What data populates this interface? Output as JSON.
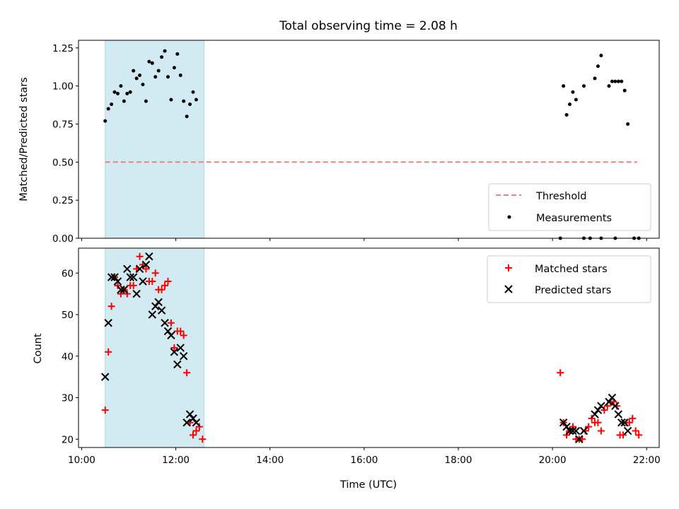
{
  "chart_data": [
    {
      "type": "scatter",
      "title": "Total observing time = 2.08 h",
      "xlabel": "",
      "ylabel": "Matched/Predicted stars",
      "xlim": [
        "09:56",
        "22:16"
      ],
      "ylim": [
        0,
        1.3
      ],
      "ytick_labels": [
        "0.00",
        "0.25",
        "0.50",
        "0.75",
        "1.00",
        "1.25"
      ],
      "shaded_interval": {
        "start": "10:30",
        "end": "12:36",
        "color": "#add8e6"
      },
      "threshold_line": {
        "name": "Threshold",
        "y": 0.5,
        "x_start": "10:30",
        "x_end": "21:48",
        "color": "#f08080",
        "style": "dashed"
      },
      "legend": {
        "position": "lower right",
        "entries": [
          "Threshold",
          "Measurements"
        ]
      },
      "series": [
        {
          "name": "Measurements",
          "marker": "dot",
          "color": "#000000",
          "x": [
            "10:30",
            "10:34",
            "10:38",
            "10:42",
            "10:46",
            "10:50",
            "10:54",
            "10:58",
            "11:02",
            "11:06",
            "11:10",
            "11:14",
            "11:18",
            "11:22",
            "11:26",
            "11:30",
            "11:34",
            "11:38",
            "11:42",
            "11:46",
            "11:50",
            "11:54",
            "11:58",
            "12:02",
            "12:06",
            "12:10",
            "12:14",
            "12:18",
            "12:22",
            "12:26",
            "20:14",
            "20:18",
            "20:22",
            "20:26",
            "20:30",
            "20:40",
            "20:54",
            "20:58",
            "21:02",
            "21:12",
            "21:16",
            "21:20",
            "21:24",
            "21:28",
            "21:32",
            "21:36",
            "21:44"
          ],
          "y": [
            0.77,
            0.85,
            0.88,
            0.96,
            0.95,
            1.0,
            0.9,
            0.95,
            0.96,
            1.1,
            1.05,
            1.07,
            1.01,
            0.9,
            1.16,
            1.15,
            1.06,
            1.1,
            1.19,
            1.23,
            1.06,
            0.91,
            1.12,
            1.21,
            1.07,
            0.9,
            0.8,
            0.88,
            0.96,
            0.91,
            1.0,
            0.81,
            0.88,
            0.96,
            0.91,
            1.0,
            1.05,
            1.13,
            1.2,
            1.0,
            1.03,
            1.03,
            1.03,
            1.03,
            0.97,
            0.75,
            0.0
          ]
        },
        {
          "name": "",
          "marker": "dot",
          "color": "#000000",
          "x": [
            "20:10",
            "20:40",
            "20:48",
            "21:02",
            "21:20",
            "21:50"
          ],
          "y": [
            0,
            0,
            0,
            0,
            0,
            0
          ]
        }
      ]
    },
    {
      "type": "scatter",
      "title": "",
      "xlabel": "Time (UTC)",
      "ylabel": "Count",
      "xlim": [
        "09:56",
        "22:16"
      ],
      "ylim": [
        18,
        66
      ],
      "xtick_labels": [
        "10:00",
        "12:00",
        "14:00",
        "16:00",
        "18:00",
        "20:00",
        "22:00"
      ],
      "ytick_labels": [
        "20",
        "30",
        "40",
        "50",
        "60"
      ],
      "shaded_interval": {
        "start": "10:30",
        "end": "12:36",
        "color": "#add8e6"
      },
      "legend": {
        "position": "upper right",
        "entries": [
          "Matched stars",
          "Predicted stars"
        ]
      },
      "series": [
        {
          "name": "Matched stars",
          "marker": "+",
          "color": "#ff0000",
          "x": [
            "10:30",
            "10:34",
            "10:38",
            "10:42",
            "10:46",
            "10:50",
            "10:54",
            "10:58",
            "11:02",
            "11:06",
            "11:10",
            "11:14",
            "11:18",
            "11:22",
            "11:26",
            "11:30",
            "11:34",
            "11:38",
            "11:42",
            "11:46",
            "11:50",
            "11:54",
            "11:58",
            "12:02",
            "12:06",
            "12:10",
            "12:14",
            "12:18",
            "12:22",
            "12:26",
            "12:30",
            "12:34",
            "20:10",
            "20:14",
            "20:18",
            "20:22",
            "20:26",
            "20:30",
            "20:34",
            "20:38",
            "20:42",
            "20:46",
            "20:50",
            "20:54",
            "20:58",
            "21:02",
            "21:06",
            "21:10",
            "21:14",
            "21:18",
            "21:22",
            "21:26",
            "21:30",
            "21:34",
            "21:38",
            "21:42",
            "21:46",
            "21:50"
          ],
          "y": [
            27,
            41,
            52,
            59,
            57,
            55,
            56,
            55,
            57,
            57,
            61,
            64,
            62,
            61,
            58,
            58,
            60,
            56,
            56,
            57,
            58,
            48,
            42,
            46,
            46,
            45,
            36,
            24,
            21,
            22,
            23,
            20,
            36,
            24,
            21,
            22,
            23,
            20,
            20,
            20,
            22,
            23,
            25,
            24,
            24,
            22,
            27,
            28,
            29,
            29,
            28,
            21,
            21,
            24,
            24,
            25,
            22,
            21
          ]
        },
        {
          "name": "Predicted stars",
          "marker": "x",
          "color": "#000000",
          "x": [
            "10:30",
            "10:34",
            "10:38",
            "10:42",
            "10:46",
            "10:50",
            "10:54",
            "10:58",
            "11:02",
            "11:06",
            "11:10",
            "11:14",
            "11:18",
            "11:22",
            "11:26",
            "11:30",
            "11:34",
            "11:38",
            "11:42",
            "11:46",
            "11:50",
            "11:54",
            "11:58",
            "12:02",
            "12:06",
            "12:10",
            "12:14",
            "12:18",
            "12:22",
            "12:26",
            "20:14",
            "20:18",
            "20:22",
            "20:26",
            "20:30",
            "20:34",
            "20:40",
            "20:54",
            "20:58",
            "21:02",
            "21:12",
            "21:16",
            "21:20",
            "21:24",
            "21:28",
            "21:32",
            "21:36"
          ],
          "y": [
            35,
            48,
            59,
            59,
            58,
            56,
            56,
            61,
            59,
            59,
            55,
            61,
            58,
            62,
            64,
            50,
            52,
            53,
            51,
            48,
            46,
            45,
            41,
            38,
            42,
            40,
            24,
            26,
            25,
            24,
            24,
            23,
            22,
            22,
            22,
            20,
            22,
            26,
            27,
            28,
            29,
            30,
            28,
            26,
            24,
            24,
            22
          ]
        }
      ]
    }
  ]
}
